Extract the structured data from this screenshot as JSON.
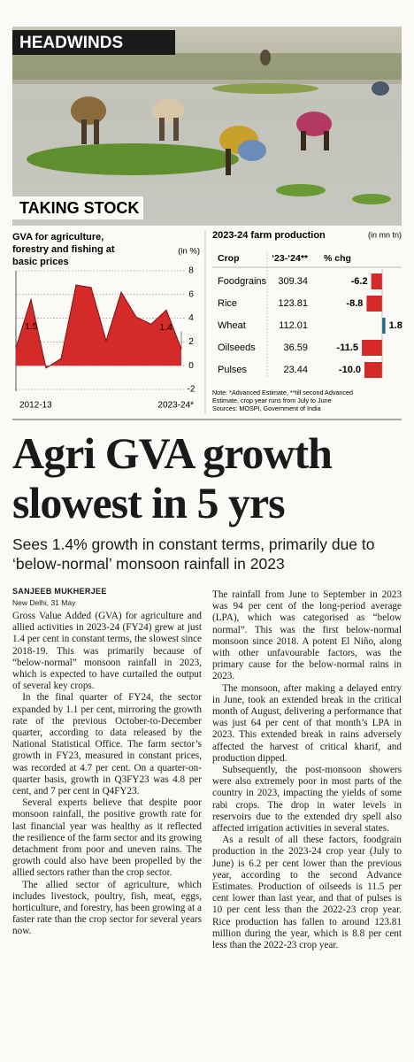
{
  "header": {
    "tag": "HEADWINDS",
    "section": "TAKING STOCK"
  },
  "chart_data": [
    {
      "type": "area",
      "title": "GVA for agriculture, forestry and fishing at basic prices",
      "unit": "(in %)",
      "categories": [
        "2012-13",
        null,
        null,
        null,
        null,
        null,
        null,
        null,
        null,
        null,
        null,
        "2023-24*"
      ],
      "values": [
        1.5,
        5.6,
        -0.2,
        0.6,
        6.8,
        6.6,
        2.1,
        6.2,
        4.1,
        3.5,
        4.7,
        1.4
      ],
      "color": "#d42a2a",
      "ylim": [
        -2,
        8
      ],
      "yticks": [
        -2,
        0,
        2,
        4,
        6,
        8
      ],
      "grid": true
    },
    {
      "type": "table-bar",
      "title": "2023-24 farm production",
      "unit": "(in mn tn)",
      "columns": [
        "Crop",
        "‘23-‘24**",
        "% chg"
      ],
      "categories": [
        "Foodgrains",
        "Rice",
        "Wheat",
        "Oilseeds",
        "Pulses"
      ],
      "production": [
        309.34,
        123.81,
        112.01,
        36.59,
        23.44
      ],
      "values": [
        -6.2,
        -8.8,
        1.8,
        -11.5,
        -10.0
      ],
      "value_labels": [
        "-6.2",
        "-8.8",
        "1.8",
        "-11.5",
        "-10.0"
      ],
      "color_negative": "#d42a2a",
      "color_positive": "#1d6b8c",
      "notes": [
        "Note: *Advanced Estimate, **till second Advanced Estimate, crop year runs from July to June",
        "Sources: MOSPI, Government of India"
      ]
    }
  ],
  "article": {
    "headline": "Agri GVA growth slowest in 5 yrs",
    "subhead": "Sees 1.4% growth in constant terms, primarily due to ‘below-normal’ monsoon rainfall in 2023",
    "byline": "SANJEEB MUKHERJEE",
    "dateline": "New Delhi, 31 May",
    "columns": [
      [
        "Gross Value Added (GVA) for agriculture and allied activities in 2023-24 (FY24) grew at just 1.4 per cent in constant terms, the slowest since 2018-19. This was primarily because of “below-normal” monsoon rainfall in 2023, which is expected to have curtailed the output of several key crops.",
        "In the final quarter of FY24, the sector expanded by 1.1 per cent, mirroring the growth rate of the previous October-to-December quarter, according to data released by the National Statistical Office. The farm sector’s growth in FY23, measured in constant prices, was recorded at 4.7 per cent. On a quarter-on-quarter basis, growth in Q3FY23 was 4.8 per cent, and 7 per cent in Q4FY23.",
        "Several experts believe that despite poor monsoon rainfall, the positive growth rate for last financial year was healthy as it reflected the resilience of the farm sector and its growing detachment from poor and uneven rains. The growth could also have been propelled by the allied sectors rather than the crop sector.",
        "The allied sector of agriculture, which includes livestock, poultry, fish, meat, eggs, horticulture, and forestry, has been growing at a faster rate than the crop sector for several years now."
      ],
      [
        "The rainfall from June to September in 2023 was 94 per cent of the long-period average (LPA), which was categorised as “below normal”. This was the first below-normal monsoon since 2018. A potent El Niño, along with other unfavourable factors, was the primary cause for the below-normal rains in 2023.",
        "The monsoon, after making a delayed entry in June, took an extended break in the critical month of August, delivering a performance that was just 64 per cent of that month’s LPA in 2023. This extended break in rains adversely affected the harvest of critical kharif, and production dipped.",
        "Subsequently, the post-monsoon showers were also extremely poor in most parts of the country in 2023, impacting the yields of some rabi crops. The drop in water levels in reservoirs due to the extended dry spell also affected irrigation activities in several states.",
        "As a result of all these factors, foodgrain production in the 2023-24 crop year (July to June) is 6.2 per cent lower than the previous year, according to the second Advance Estimates. Production of oilseeds is 11.5 per cent lower than last year, and that of pulses is 10 per cent less than the 2022-23 crop year. Rice production has fallen to around 123.81 million during the year, which is 8.8 per cent less than the 2022-23 crop year."
      ]
    ]
  }
}
